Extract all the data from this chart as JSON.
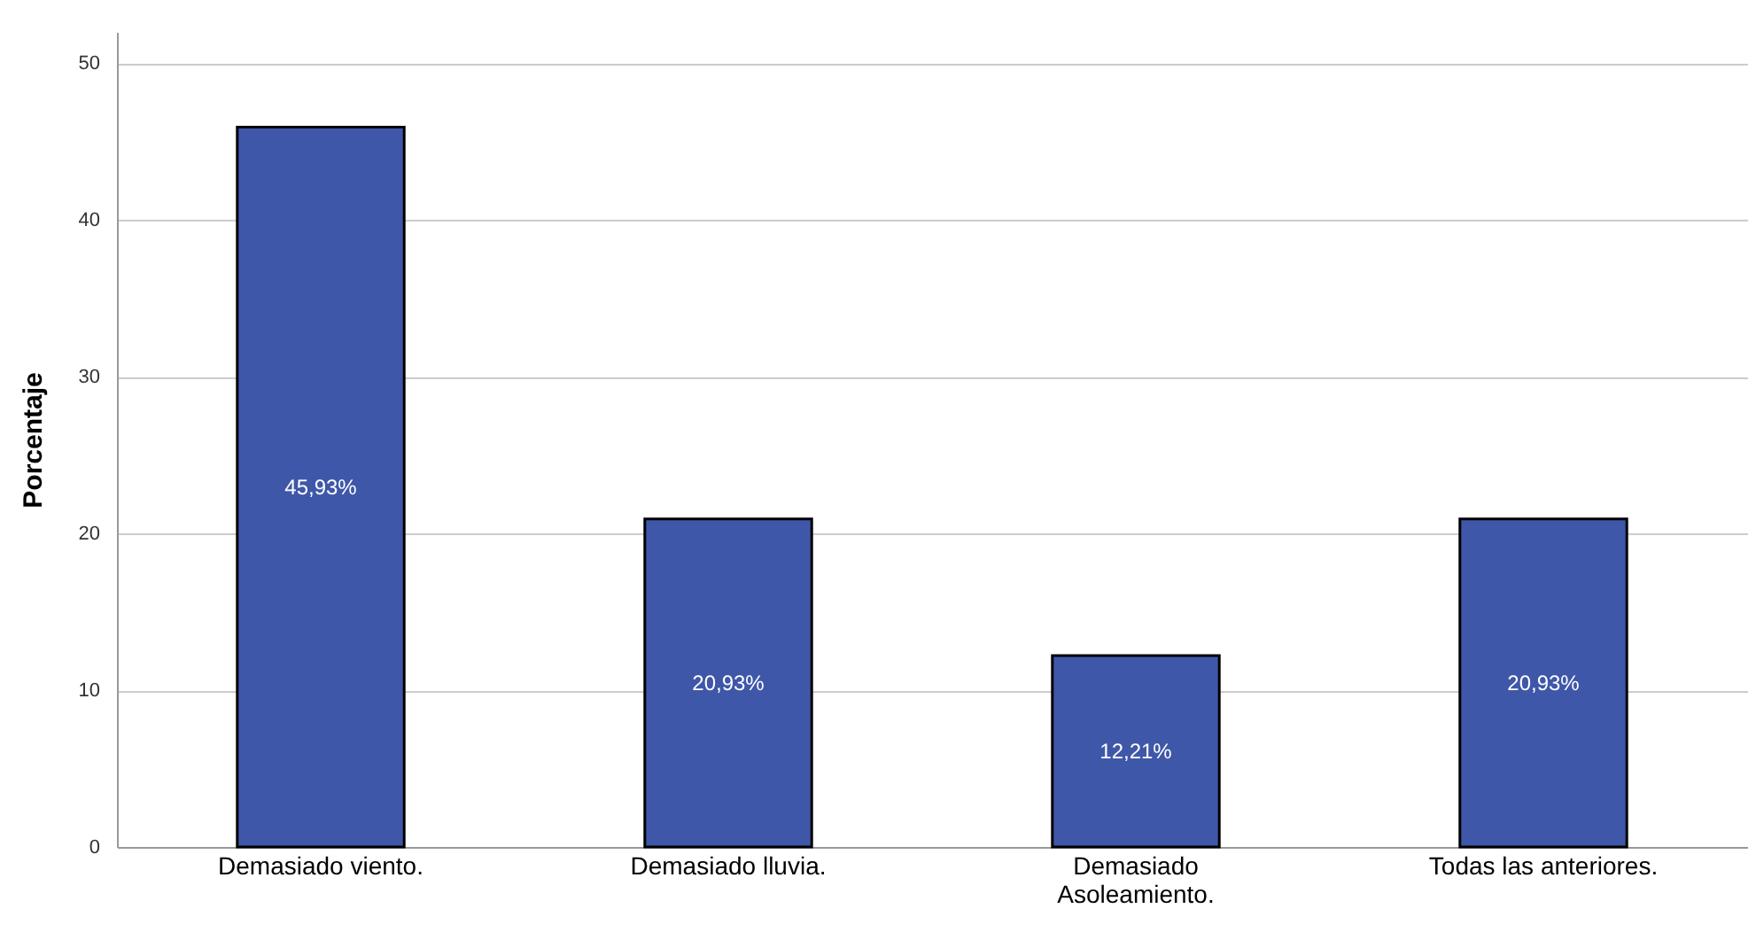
{
  "chart_data": {
    "type": "bar",
    "ylabel": "Porcentaje",
    "categories": [
      "Demasiado viento.",
      "Demasiado lluvia.",
      "Demasiado Asoleamiento.",
      "Todas las anteriores."
    ],
    "values": [
      45.93,
      20.93,
      12.21,
      20.93
    ],
    "value_labels": [
      "45,93%",
      "20,93%",
      "12,21%",
      "20,93%"
    ],
    "color": "#3f57a8",
    "ylim": [
      0,
      52
    ],
    "yticks": [
      0,
      10,
      20,
      30,
      40,
      50
    ],
    "grid": "y"
  }
}
